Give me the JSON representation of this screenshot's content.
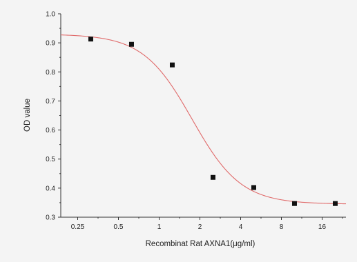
{
  "chart_data": {
    "type": "scatter",
    "title": "",
    "xlabel": "Recombinat Rat AXNA1(μg/ml)",
    "ylabel": "OD value",
    "x_scale": "log2",
    "xlim": [
      0.1875,
      24
    ],
    "ylim": [
      0.3,
      1.0
    ],
    "x_ticks": [
      0.25,
      0.5,
      1,
      2,
      4,
      8,
      16
    ],
    "x_tick_labels": [
      "0.25",
      "0.5",
      "1",
      "2",
      "4",
      "8",
      "16"
    ],
    "y_ticks": [
      0.3,
      0.4,
      0.5,
      0.6,
      0.7,
      0.8,
      0.9,
      1.0
    ],
    "y_tick_labels": [
      "0.3",
      "0.4",
      "0.5",
      "0.6",
      "0.7",
      "0.8",
      "0.9",
      "1.0"
    ],
    "grid": false,
    "legend": "none",
    "series": [
      {
        "kind": "points",
        "marker": "square",
        "color": "#111111",
        "x": [
          0.3125,
          0.625,
          1.25,
          2.5,
          5,
          10,
          20
        ],
        "y": [
          0.913,
          0.895,
          0.824,
          0.437,
          0.402,
          0.347,
          0.347
        ]
      },
      {
        "kind": "fit-curve",
        "model": "4PL",
        "color": "#e06a6a",
        "top": 0.93,
        "bottom": 0.345,
        "ec50": 1.75,
        "hill": 2.4
      }
    ]
  }
}
